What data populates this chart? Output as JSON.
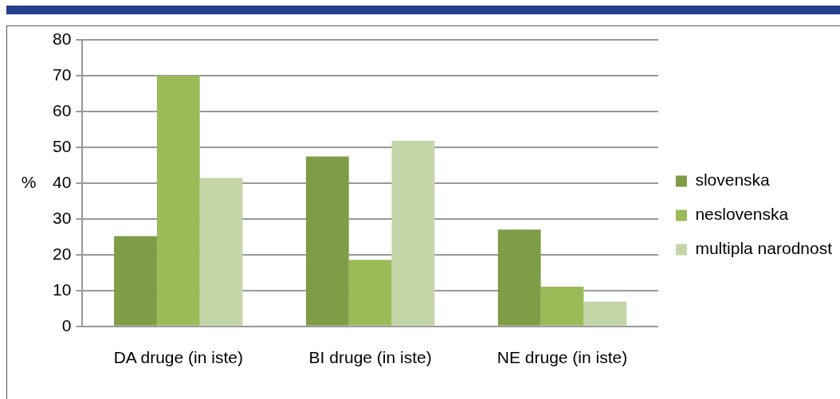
{
  "chart_data": {
    "type": "bar",
    "ylabel": "%",
    "categories": [
      "DA druge (in iste)",
      "BI druge (in iste)",
      "NE druge (in iste)"
    ],
    "series": [
      {
        "name": "slovenska",
        "color": "#7f9c47",
        "values": [
          25.2,
          47.4,
          27.0
        ]
      },
      {
        "name": "neslovenska",
        "color": "#9bbb59",
        "values": [
          70.0,
          18.6,
          11.1
        ]
      },
      {
        "name": "multipla narodnost",
        "color": "#c4d6a8",
        "values": [
          41.4,
          51.8,
          6.9
        ]
      }
    ],
    "ylim": [
      0,
      80
    ],
    "yticks": [
      0,
      10,
      20,
      30,
      40,
      50,
      60,
      70,
      80
    ],
    "grid": "y",
    "legend": "right"
  }
}
